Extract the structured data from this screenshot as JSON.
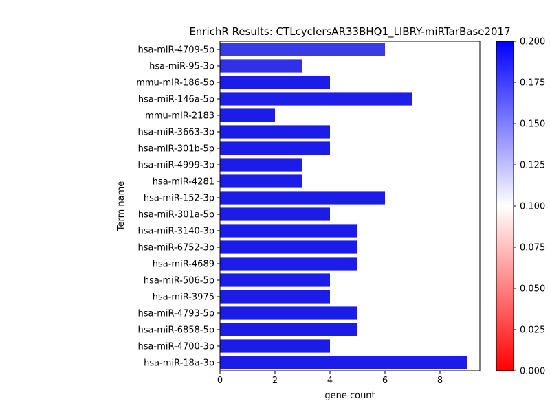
{
  "chart_data": {
    "type": "bar",
    "orientation": "horizontal",
    "title": "EnrichR Results: CTLcyclersAR33BHQ1_LIBRY-miRTarBase2017",
    "xlabel": "gene count",
    "ylabel": "Term name",
    "xlim": [
      0,
      9.45
    ],
    "xticks": [
      "0",
      "2",
      "4",
      "6",
      "8"
    ],
    "categories": [
      "hsa-miR-4709-5p",
      "hsa-miR-95-3p",
      "mmu-miR-186-5p",
      "hsa-miR-146a-5p",
      "mmu-miR-2183",
      "hsa-miR-3663-3p",
      "hsa-miR-301b-5p",
      "hsa-miR-4999-3p",
      "hsa-miR-4281",
      "hsa-miR-152-3p",
      "hsa-miR-301a-5p",
      "hsa-miR-3140-3p",
      "hsa-miR-6752-3p",
      "hsa-miR-4689",
      "hsa-miR-506-5p",
      "hsa-miR-3975",
      "hsa-miR-4793-5p",
      "hsa-miR-6858-5p",
      "hsa-miR-4700-3p",
      "hsa-miR-18a-3p"
    ],
    "values": [
      6,
      3,
      4,
      7,
      2,
      4,
      4,
      3,
      3,
      6,
      4,
      5,
      5,
      5,
      4,
      4,
      5,
      5,
      4,
      9
    ],
    "bar_colors": [
      "#3b3be6",
      "#3030e6",
      "#1c1ce8",
      "#1e1ee8",
      "#1c1ce8",
      "#1c1ce8",
      "#1c1ce8",
      "#1c1ce8",
      "#1c1ce8",
      "#1c1ce8",
      "#1c1ce8",
      "#1c1ce8",
      "#1c1ce8",
      "#1c1ce8",
      "#1c1ce8",
      "#1c1ce8",
      "#1c1ce8",
      "#1c1ce8",
      "#1c1ce8",
      "#1c1ce8"
    ],
    "colorbar": {
      "range": [
        0.0,
        0.2
      ],
      "ticks": [
        "0.000",
        "0.025",
        "0.050",
        "0.075",
        "0.100",
        "0.125",
        "0.150",
        "0.175",
        "0.200"
      ],
      "colors": [
        "#ff0000",
        "#ffffff",
        "#0000ff"
      ]
    },
    "grid": false,
    "legend": "none"
  }
}
